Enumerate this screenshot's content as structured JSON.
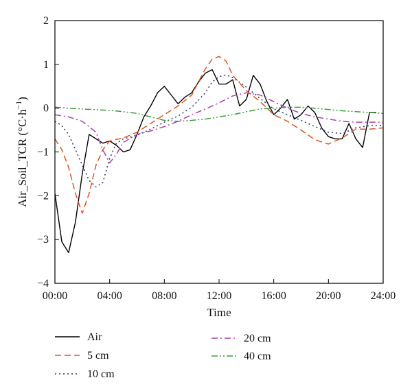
{
  "chart_data": {
    "type": "line",
    "xlabel": "Time",
    "ylabel_main": "Air_Soil_TCR (°C·h",
    "ylabel_sup": "−1",
    "ylabel_close": ")",
    "xlim": [
      0,
      24
    ],
    "ylim": [
      -4,
      2
    ],
    "xticks": [
      0,
      4,
      8,
      12,
      16,
      20,
      24
    ],
    "xtick_labels": [
      "00:00",
      "04:00",
      "08:00",
      "12:00",
      "16:00",
      "20:00",
      "24:00"
    ],
    "yticks": [
      -4,
      -3,
      -2,
      -1,
      0,
      1,
      2
    ],
    "ytick_labels": [
      "−4",
      "−3",
      "−2",
      "−1",
      "0",
      "1",
      "2"
    ],
    "grid": false,
    "legend_position": "bottom",
    "series": [
      {
        "name": "Air",
        "color": "#000000",
        "dash": "",
        "x": [
          0,
          0.5,
          1,
          1.5,
          2,
          2.5,
          3,
          3.5,
          4,
          4.5,
          5,
          5.5,
          6,
          6.5,
          7,
          7.5,
          8,
          8.5,
          9,
          9.5,
          10,
          10.5,
          11,
          11.5,
          12,
          12.5,
          13,
          13.5,
          14,
          14.5,
          15,
          15.5,
          16,
          16.5,
          17,
          17.5,
          18,
          18.5,
          19,
          19.5,
          20,
          20.5,
          21,
          21.5,
          22,
          22.5,
          23,
          23.5
        ],
        "y": [
          -1.95,
          -3.05,
          -3.3,
          -2.6,
          -1.5,
          -0.6,
          -0.7,
          -0.8,
          -0.75,
          -0.85,
          -1.0,
          -0.95,
          -0.6,
          -0.2,
          0.05,
          0.35,
          0.5,
          0.3,
          0.1,
          0.25,
          0.35,
          0.6,
          0.8,
          0.88,
          0.55,
          0.55,
          0.65,
          0.05,
          0.2,
          0.75,
          0.55,
          0.15,
          -0.15,
          0.0,
          0.2,
          -0.25,
          -0.15,
          0.05,
          -0.1,
          -0.45,
          -0.65,
          -0.7,
          -0.7,
          -0.35,
          -0.7,
          -0.9,
          -0.1,
          -0.1
        ]
      },
      {
        "name": "5 cm",
        "color": "#e0531b",
        "dash": "9,5",
        "x": [
          0,
          0.5,
          1,
          1.5,
          2,
          2.5,
          3,
          3.5,
          4,
          5,
          6,
          7,
          8,
          9,
          10,
          10.5,
          11,
          11.5,
          12,
          12.5,
          13,
          14,
          15,
          16,
          17,
          18,
          19,
          20,
          21,
          22,
          23,
          24
        ],
        "y": [
          -0.7,
          -0.95,
          -1.35,
          -1.95,
          -2.4,
          -1.95,
          -1.3,
          -0.95,
          -0.75,
          -0.68,
          -0.55,
          -0.35,
          -0.15,
          0.05,
          0.3,
          0.6,
          0.9,
          1.12,
          1.18,
          1.08,
          0.75,
          0.4,
          0.15,
          -0.15,
          -0.3,
          -0.5,
          -0.72,
          -0.82,
          -0.68,
          -0.48,
          -0.48,
          -0.45
        ]
      },
      {
        "name": "10 cm",
        "color": "#2b2b7a",
        "dash": "2,4",
        "x": [
          0,
          0.5,
          1,
          1.5,
          2,
          2.5,
          3,
          3.5,
          4,
          4.5,
          5,
          6,
          7,
          8,
          9,
          10,
          11,
          11.5,
          12,
          12.5,
          13,
          14,
          15,
          16,
          17,
          18,
          19,
          20,
          21,
          22,
          23,
          24
        ],
        "y": [
          -0.3,
          -0.4,
          -0.6,
          -0.95,
          -1.3,
          -1.65,
          -1.8,
          -1.7,
          -1.15,
          -0.8,
          -0.7,
          -0.62,
          -0.48,
          -0.32,
          -0.18,
          0.02,
          0.35,
          0.6,
          0.72,
          0.76,
          0.7,
          0.48,
          0.22,
          -0.02,
          -0.15,
          -0.28,
          -0.42,
          -0.55,
          -0.58,
          -0.45,
          -0.4,
          -0.4
        ]
      },
      {
        "name": "20 cm",
        "color": "#b03ab5",
        "dash": "9,4,2,4",
        "x": [
          0,
          1,
          2,
          3,
          3.5,
          4,
          4.5,
          5,
          6,
          7,
          8,
          9,
          10,
          11,
          12,
          13,
          14,
          15,
          16,
          17,
          18,
          19,
          20,
          21,
          22,
          23,
          24
        ],
        "y": [
          -0.15,
          -0.2,
          -0.3,
          -0.55,
          -0.95,
          -1.25,
          -1.05,
          -0.78,
          -0.6,
          -0.52,
          -0.42,
          -0.3,
          -0.15,
          -0.02,
          0.12,
          0.28,
          0.35,
          0.3,
          0.15,
          0.0,
          -0.12,
          -0.2,
          -0.25,
          -0.3,
          -0.32,
          -0.32,
          -0.32
        ]
      },
      {
        "name": "40 cm",
        "color": "#3c9a3c",
        "dash": "9,3,2,3,2,3",
        "x": [
          0,
          2,
          4,
          5,
          6,
          7,
          8,
          9,
          10,
          11,
          12,
          13,
          14,
          15,
          16,
          17,
          18,
          19,
          20,
          21,
          22,
          23,
          24
        ],
        "y": [
          0.02,
          -0.02,
          -0.05,
          -0.08,
          -0.12,
          -0.2,
          -0.28,
          -0.3,
          -0.28,
          -0.25,
          -0.2,
          -0.15,
          -0.08,
          -0.02,
          0.0,
          0.02,
          0.02,
          0.0,
          -0.03,
          -0.06,
          -0.08,
          -0.1,
          -0.12
        ]
      }
    ]
  }
}
